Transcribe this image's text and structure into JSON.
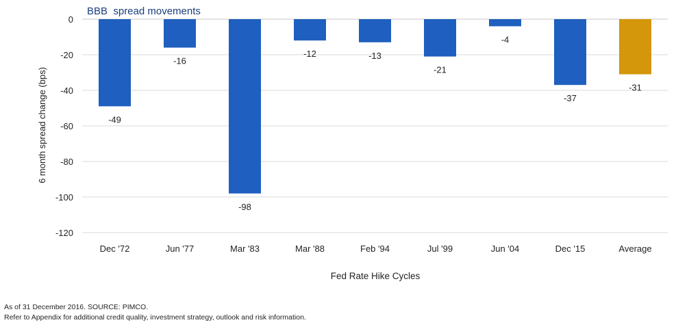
{
  "chart_data": {
    "type": "bar",
    "title": "BBB  spread movements",
    "xlabel": "Fed Rate Hike Cycles",
    "ylabel": "6 month spread change (bps)",
    "ylim": [
      -120,
      0
    ],
    "yticks": [
      0,
      -20,
      -40,
      -60,
      -80,
      -100,
      -120
    ],
    "grid": true,
    "categories": [
      "Dec '72",
      "Jun '77",
      "Mar '83",
      "Mar '88",
      "Feb '94",
      "Jul '99",
      "Jun '04",
      "Dec '15",
      "Average"
    ],
    "values": [
      -49,
      -16,
      -98,
      -12,
      -13,
      -21,
      -4,
      -37,
      -31
    ],
    "colors": {
      "cycle": "#1f5fbf",
      "average": "#d4960a",
      "grid": "#d9d9d9",
      "axis": "#c8c8c8"
    }
  },
  "footnotes": {
    "source": "As of 31 December 2016. SOURCE: PIMCO.",
    "disclaimer": "Refer to Appendix for additional credit quality, investment strategy, outlook and risk information."
  }
}
